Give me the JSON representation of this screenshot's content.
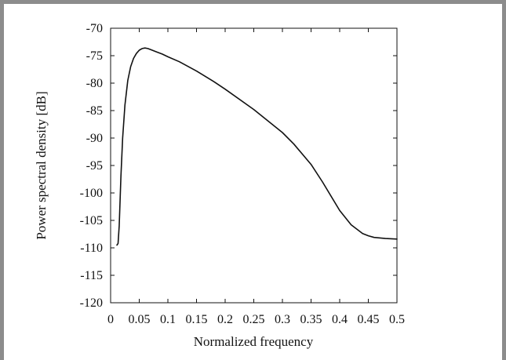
{
  "chart_data": {
    "type": "line",
    "title": "",
    "xlabel": "Normalized frequency",
    "ylabel": "Power spectral density [dB]",
    "xlim": [
      0,
      0.5
    ],
    "ylim": [
      -120,
      -70
    ],
    "x_ticks": [
      "0",
      "0.05",
      "0.1",
      "0.15",
      "0.2",
      "0.25",
      "0.3",
      "0.35",
      "0.4",
      "0.45",
      "0.5"
    ],
    "y_ticks": [
      "-70",
      "-75",
      "-80",
      "-85",
      "-90",
      "-95",
      "-100",
      "-105",
      "-110",
      "-115",
      "-120"
    ],
    "grid": false,
    "legend": "none",
    "line_color": "#111111",
    "series": [
      {
        "x": [
          0.011,
          0.013,
          0.015,
          0.018,
          0.021,
          0.025,
          0.03,
          0.035,
          0.04,
          0.045,
          0.05,
          0.055,
          0.06,
          0.065,
          0.07,
          0.08,
          0.09,
          0.1,
          0.12,
          0.15,
          0.18,
          0.2,
          0.25,
          0.3,
          0.32,
          0.35,
          0.37,
          0.4,
          0.42,
          0.44,
          0.45,
          0.46,
          0.48,
          0.5
        ],
        "y": [
          -109.5,
          -109.2,
          -106,
          -97,
          -90,
          -84,
          -79.5,
          -77,
          -75.5,
          -74.6,
          -74.0,
          -73.7,
          -73.6,
          -73.7,
          -73.9,
          -74.3,
          -74.7,
          -75.2,
          -76.1,
          -77.8,
          -79.7,
          -81.1,
          -84.8,
          -89.0,
          -91.1,
          -94.8,
          -98.0,
          -103.2,
          -105.8,
          -107.4,
          -107.8,
          -108.1,
          -108.3,
          -108.4
        ]
      }
    ]
  }
}
